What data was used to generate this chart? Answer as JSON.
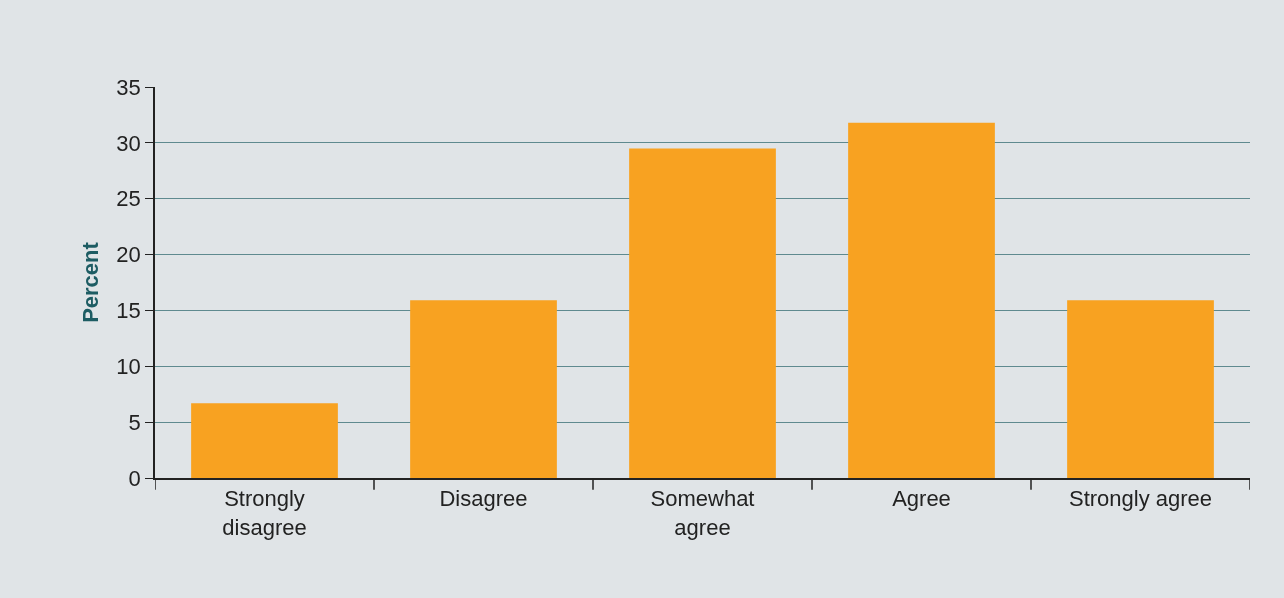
{
  "chart_data": {
    "type": "bar",
    "ylabel": "Percent",
    "categories": [
      "Strongly\ndisagree",
      "Disagree",
      "Somewhat\nagree",
      "Agree",
      "Strongly agree"
    ],
    "values": [
      6.7,
      15.9,
      29.5,
      31.8,
      15.9
    ],
    "color": "#f8a221",
    "ylim": [
      0,
      35
    ],
    "yticks": [
      0,
      5,
      10,
      15,
      20,
      25,
      30,
      35
    ],
    "grid": "y"
  }
}
